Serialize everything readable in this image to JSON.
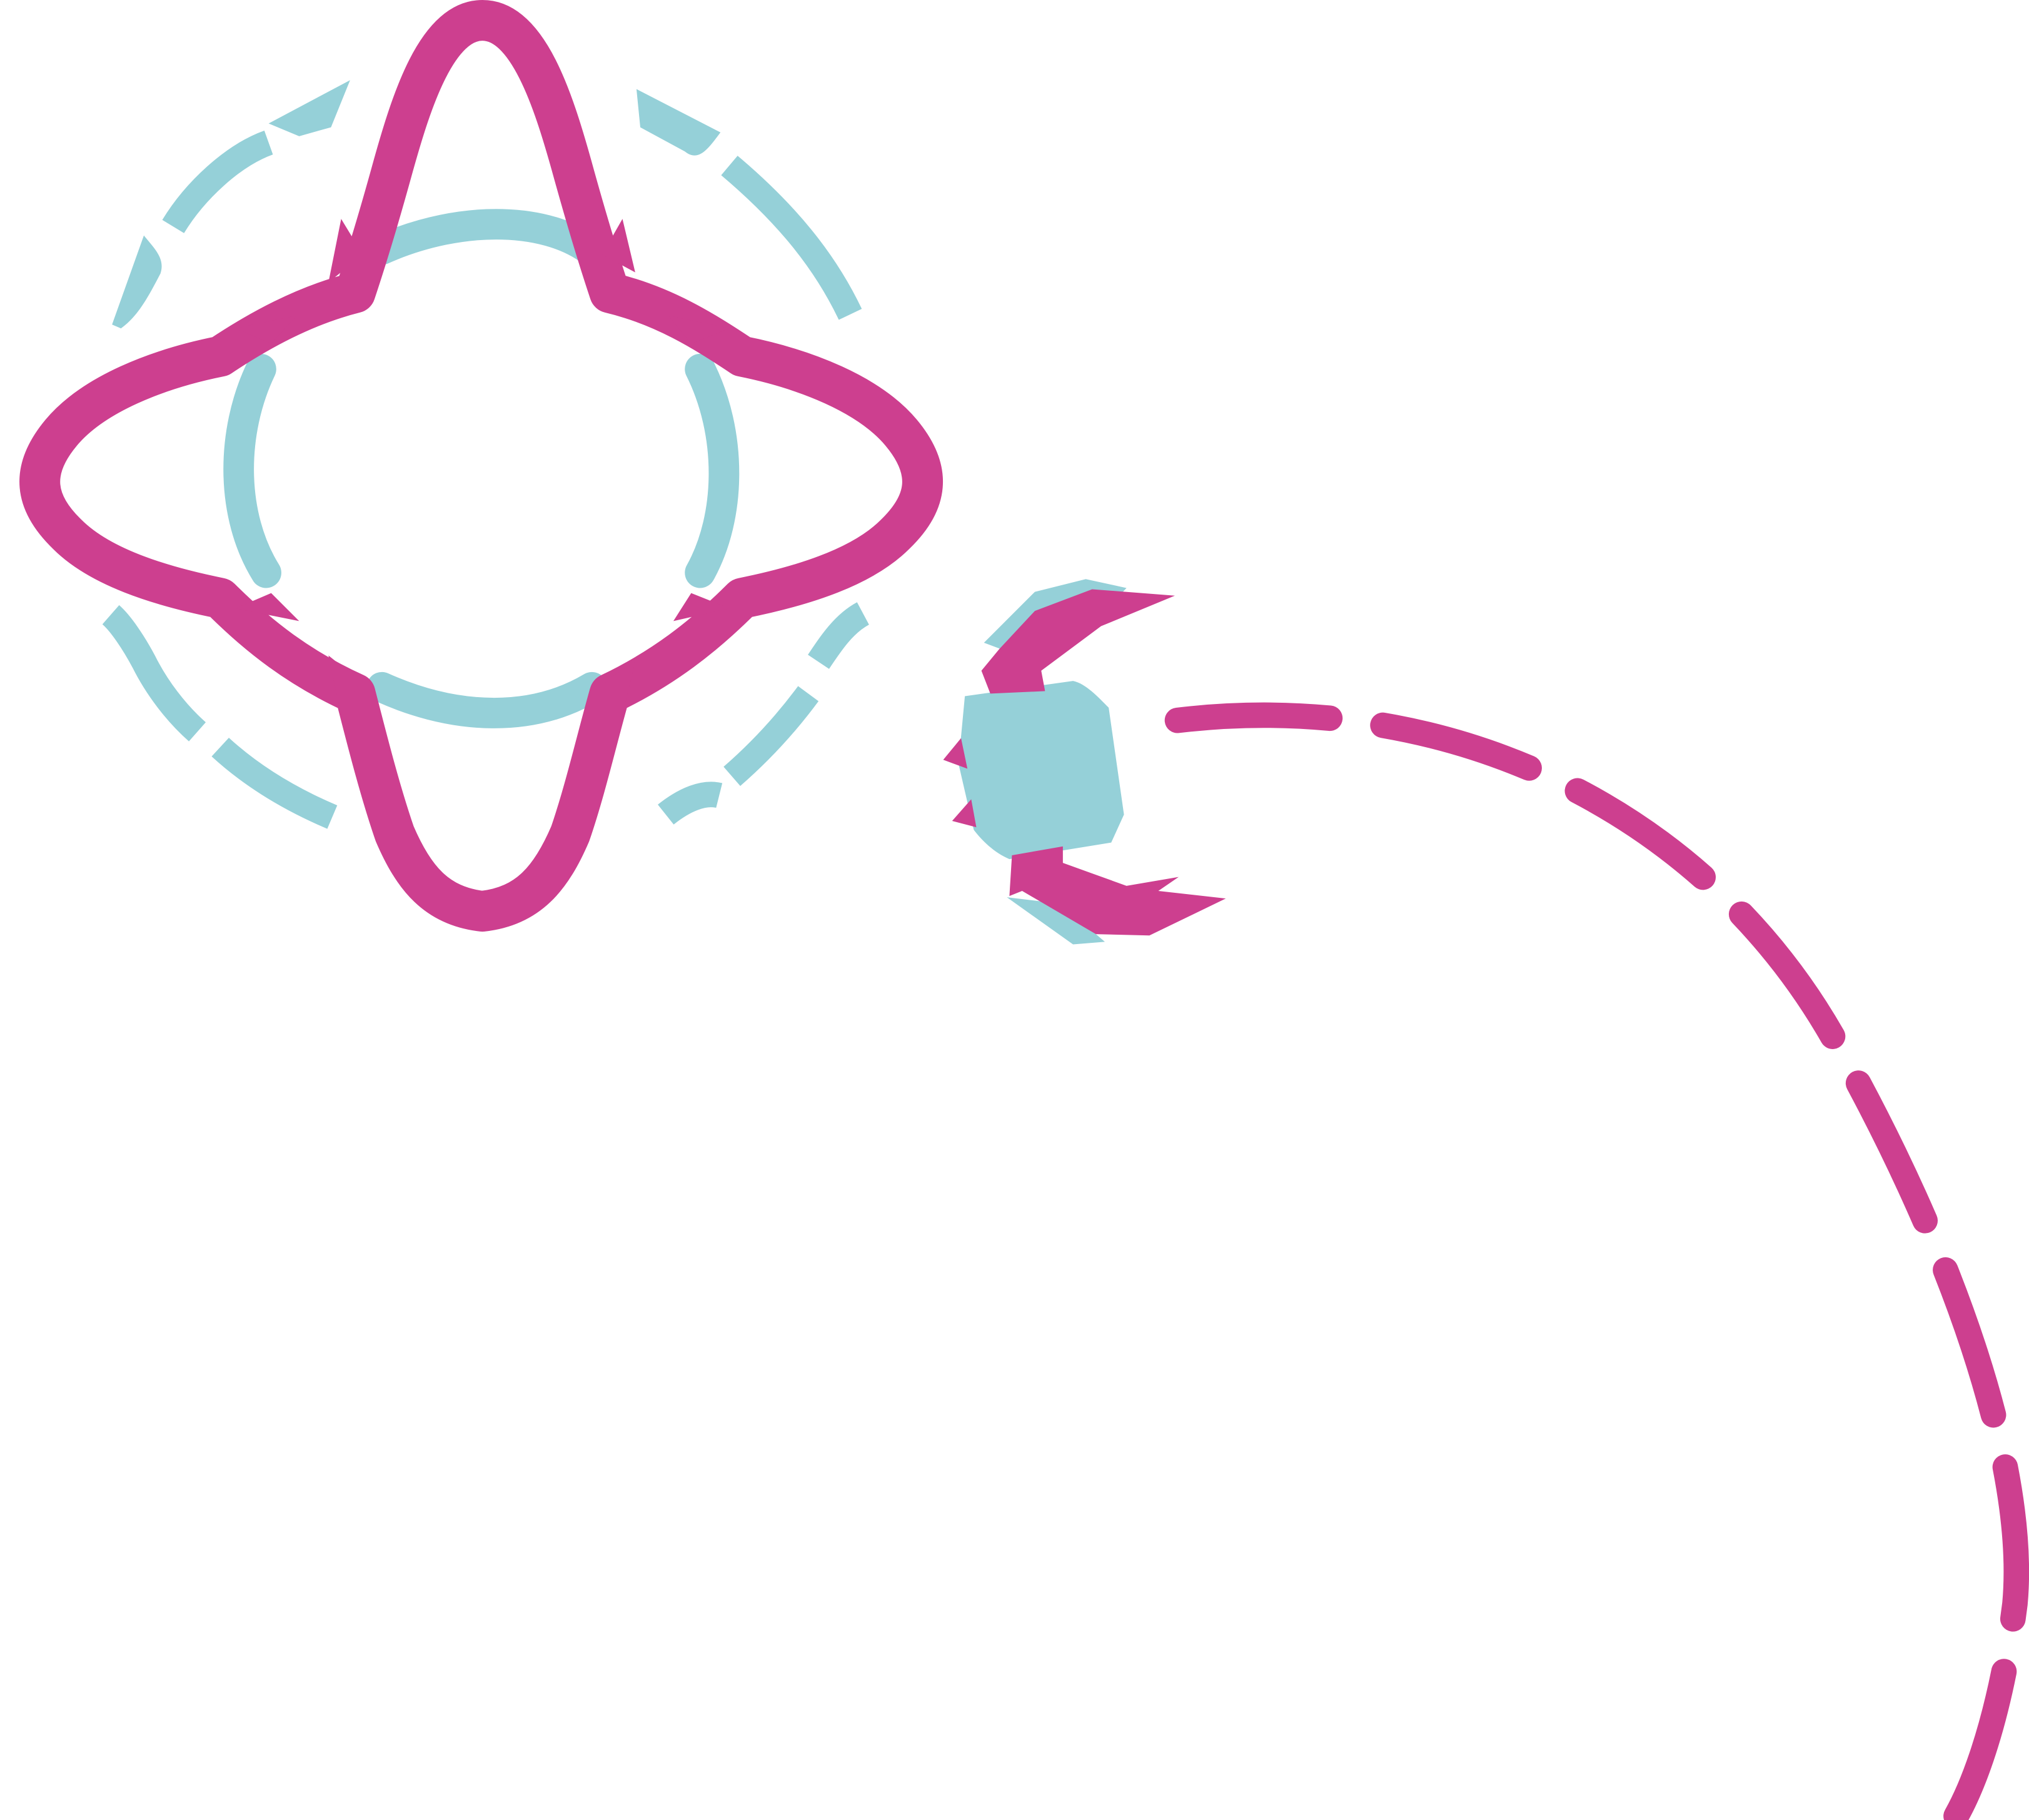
{
  "illustration": {
    "colors": {
      "magenta": "#CD3F8F",
      "teal": "#95D0D8",
      "background": "#FFFFFF"
    },
    "elements": [
      "orbit-target-icon",
      "satellite-icon",
      "dashed-trajectory"
    ]
  }
}
